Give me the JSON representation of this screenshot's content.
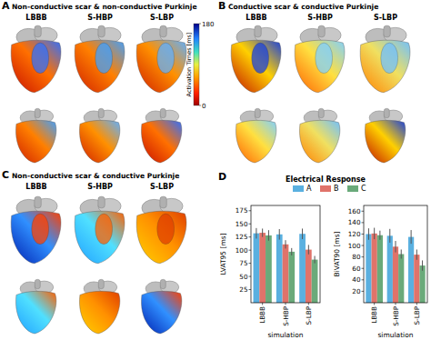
{
  "panels": [
    {
      "label": "A",
      "title": "Non-conductive scar & non-conductive Purkinje",
      "columns": [
        "LBBB",
        "S-HBP",
        "S-LBP"
      ]
    },
    {
      "label": "B",
      "title": "Conductive scar & conductive Purkinje",
      "columns": [
        "LBBB",
        "S-HBP",
        "S-LBP"
      ]
    },
    {
      "label": "C",
      "title": "Non-conductive scar & conductive Purkinje",
      "columns": [
        "LBBB",
        "S-HBP",
        "S-LBP"
      ]
    }
  ],
  "colorbar": {
    "label": "Activation Times [ms]",
    "range": [
      0,
      180
    ],
    "ticks": [
      0,
      180
    ]
  },
  "panel_d": {
    "label": "D",
    "title": "Electrical Response"
  },
  "chart_data": [
    {
      "type": "bar",
      "ylabel": "LVAT95 [ms]",
      "xlabel": "simulation",
      "categories": [
        "LBBB",
        "S-HBP",
        "S-LBP"
      ],
      "series": [
        {
          "name": "A",
          "color": "#5ab0e0",
          "values": [
            132,
            130,
            131
          ],
          "errors": [
            10,
            10,
            10
          ]
        },
        {
          "name": "B",
          "color": "#e0736a",
          "values": [
            133,
            111,
            101
          ],
          "errors": [
            8,
            8,
            9
          ]
        },
        {
          "name": "C",
          "color": "#6aaa7a",
          "values": [
            128,
            97,
            82
          ],
          "errors": [
            10,
            7,
            7
          ]
        }
      ],
      "ylim": [
        0,
        185
      ],
      "yticks": [
        25,
        50,
        75,
        100,
        125,
        150,
        175
      ],
      "legend": "top"
    },
    {
      "type": "bar",
      "ylabel": "BiVAT90 [ms]",
      "xlabel": "simulation",
      "categories": [
        "LBBB",
        "S-HBP",
        "S-LBP"
      ],
      "series": [
        {
          "name": "A",
          "color": "#5ab0e0",
          "values": [
            120,
            117,
            115
          ],
          "errors": [
            10,
            12,
            12
          ]
        },
        {
          "name": "B",
          "color": "#e0736a",
          "values": [
            121,
            98,
            84
          ],
          "errors": [
            10,
            10,
            9
          ]
        },
        {
          "name": "C",
          "color": "#6aaa7a",
          "values": [
            118,
            85,
            65
          ],
          "errors": [
            8,
            8,
            9
          ]
        }
      ],
      "ylim": [
        0,
        170
      ],
      "yticks": [
        20,
        40,
        60,
        80,
        100,
        120,
        140,
        160
      ]
    }
  ]
}
